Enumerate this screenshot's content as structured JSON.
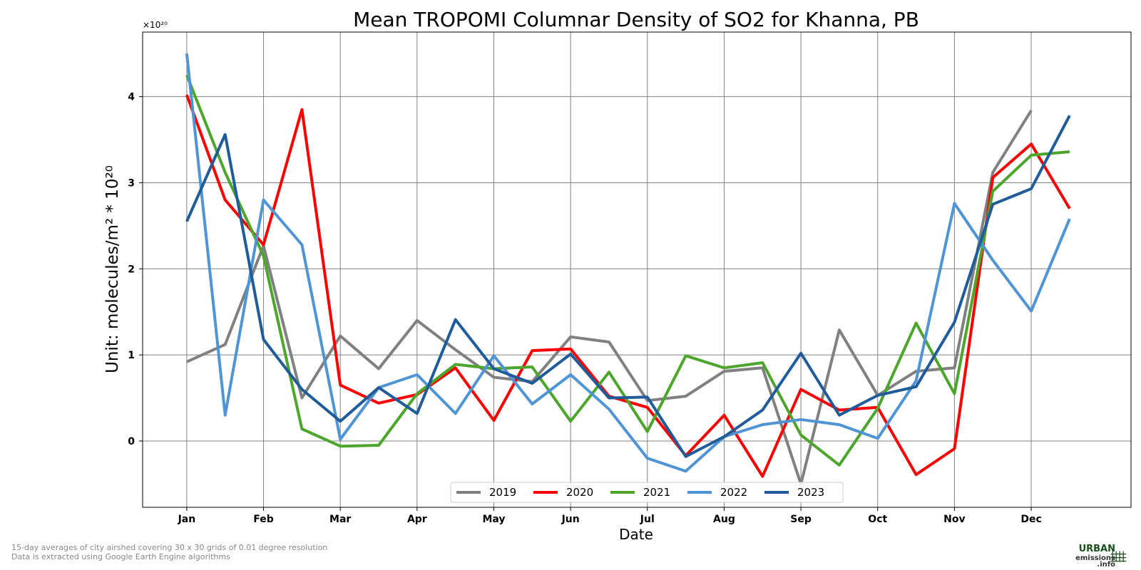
{
  "chart_data": {
    "type": "line",
    "title": "Mean TROPOMI Columnar Density of SO2 for Khanna, PB",
    "xlabel": "Date",
    "ylabel": "Unit: molecules/m² * 10²⁰",
    "y_multiplier_label": "×10²⁰",
    "ylim": [
      -0.77,
      4.75
    ],
    "yticks": [
      0,
      1,
      2,
      3,
      4
    ],
    "xticks": [
      "Jan",
      "Feb",
      "Mar",
      "Apr",
      "May",
      "Jun",
      "Jul",
      "Aug",
      "Sep",
      "Oct",
      "Nov",
      "Dec"
    ],
    "x_index_range": [
      -1.15,
      24.6
    ],
    "grid": true,
    "legend_position": "bottom-center",
    "series": [
      {
        "name": "2019",
        "color": "#808080",
        "values": [
          0.92,
          1.12,
          2.27,
          0.5,
          1.22,
          0.84,
          1.4,
          1.06,
          0.74,
          0.69,
          1.21,
          1.15,
          0.47,
          0.52,
          0.81,
          0.85,
          -0.5,
          1.29,
          0.53,
          0.81,
          0.85,
          3.12,
          3.84
        ]
      },
      {
        "name": "2020",
        "color": "#ff0000",
        "values": [
          4.02,
          2.8,
          2.28,
          3.85,
          0.65,
          0.44,
          0.54,
          0.85,
          0.24,
          1.05,
          1.07,
          0.52,
          0.39,
          -0.17,
          0.3,
          -0.41,
          0.6,
          0.36,
          0.39,
          -0.39,
          -0.09,
          3.06,
          3.45,
          2.7
        ]
      },
      {
        "name": "2021",
        "color": "#4ca62c",
        "values": [
          4.25,
          3.12,
          2.15,
          0.14,
          -0.06,
          -0.05,
          0.55,
          0.89,
          0.84,
          0.86,
          0.23,
          0.8,
          0.11,
          0.99,
          0.85,
          0.91,
          0.07,
          -0.28,
          0.38,
          1.37,
          0.55,
          2.9,
          3.32,
          3.36
        ]
      },
      {
        "name": "2022",
        "color": "#4f94d4",
        "values": [
          4.5,
          0.3,
          2.8,
          2.28,
          0.02,
          0.62,
          0.77,
          0.32,
          0.99,
          0.43,
          0.77,
          0.37,
          -0.2,
          -0.35,
          0.05,
          0.19,
          0.25,
          0.19,
          0.03,
          0.7,
          2.76,
          2.1,
          1.51,
          2.58
        ]
      },
      {
        "name": "2023",
        "color": "#1f5c99",
        "values": [
          2.55,
          3.56,
          1.18,
          0.6,
          0.23,
          0.62,
          0.32,
          1.41,
          0.84,
          0.67,
          1.01,
          0.5,
          0.51,
          -0.18,
          0.05,
          0.36,
          1.02,
          0.3,
          0.53,
          0.63,
          1.38,
          2.75,
          2.93,
          3.78
        ]
      }
    ]
  },
  "footnotes": {
    "line1": "15-day averages of city airshed covering 30 x 30 grids of 0.01 degree resolution",
    "line2": "Data is extracted using Google Earth Engine algorithms"
  },
  "logo": {
    "line1": "URBAN",
    "line2": "emissions",
    "line3": ".info",
    "color": "#1a4d1a"
  }
}
